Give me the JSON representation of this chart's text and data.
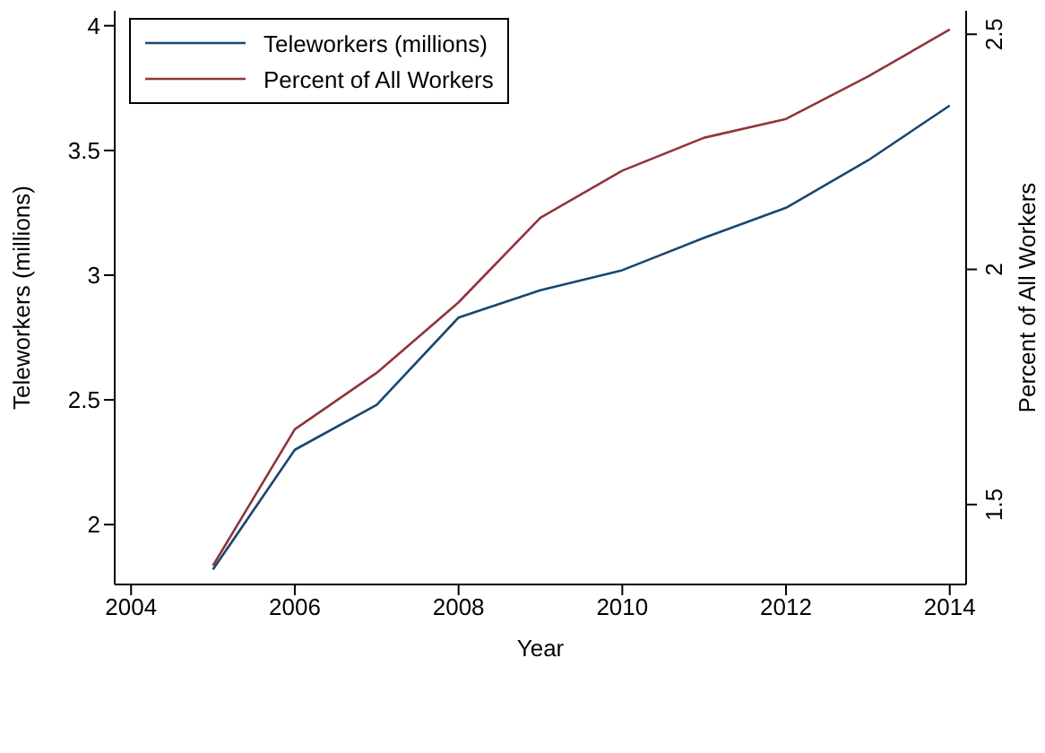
{
  "chart_data": {
    "type": "line",
    "xlabel": "Year",
    "ylabel": "Teleworkers (millions)",
    "y2label": "Percent of All Workers",
    "x": [
      2005,
      2006,
      2007,
      2008,
      2009,
      2010,
      2011,
      2012,
      2013,
      2014
    ],
    "series": [
      {
        "name": "Teleworkers (millions)",
        "color": "#1a476f",
        "values": [
          1.82,
          2.3,
          2.48,
          2.83,
          2.94,
          3.02,
          3.15,
          3.27,
          3.46,
          3.68
        ]
      },
      {
        "name": "Percent of All Workers",
        "color": "#90353b",
        "axis": "y2",
        "values": [
          1.37,
          1.66,
          1.78,
          1.93,
          2.11,
          2.21,
          2.28,
          2.32,
          2.41,
          2.51
        ]
      }
    ],
    "xlim": [
      2003.8,
      2014.2
    ],
    "xticks": [
      2004,
      2006,
      2008,
      2010,
      2012,
      2014
    ],
    "ylim": [
      1.76,
      4.06
    ],
    "yticks": [
      2,
      2.5,
      3,
      3.5,
      4
    ],
    "y2lim": [
      1.33,
      2.55
    ],
    "y2ticks": [
      1.5,
      2,
      2.5
    ],
    "grid": false,
    "legend": "top left",
    "marker": "none",
    "line_style": "solid"
  }
}
